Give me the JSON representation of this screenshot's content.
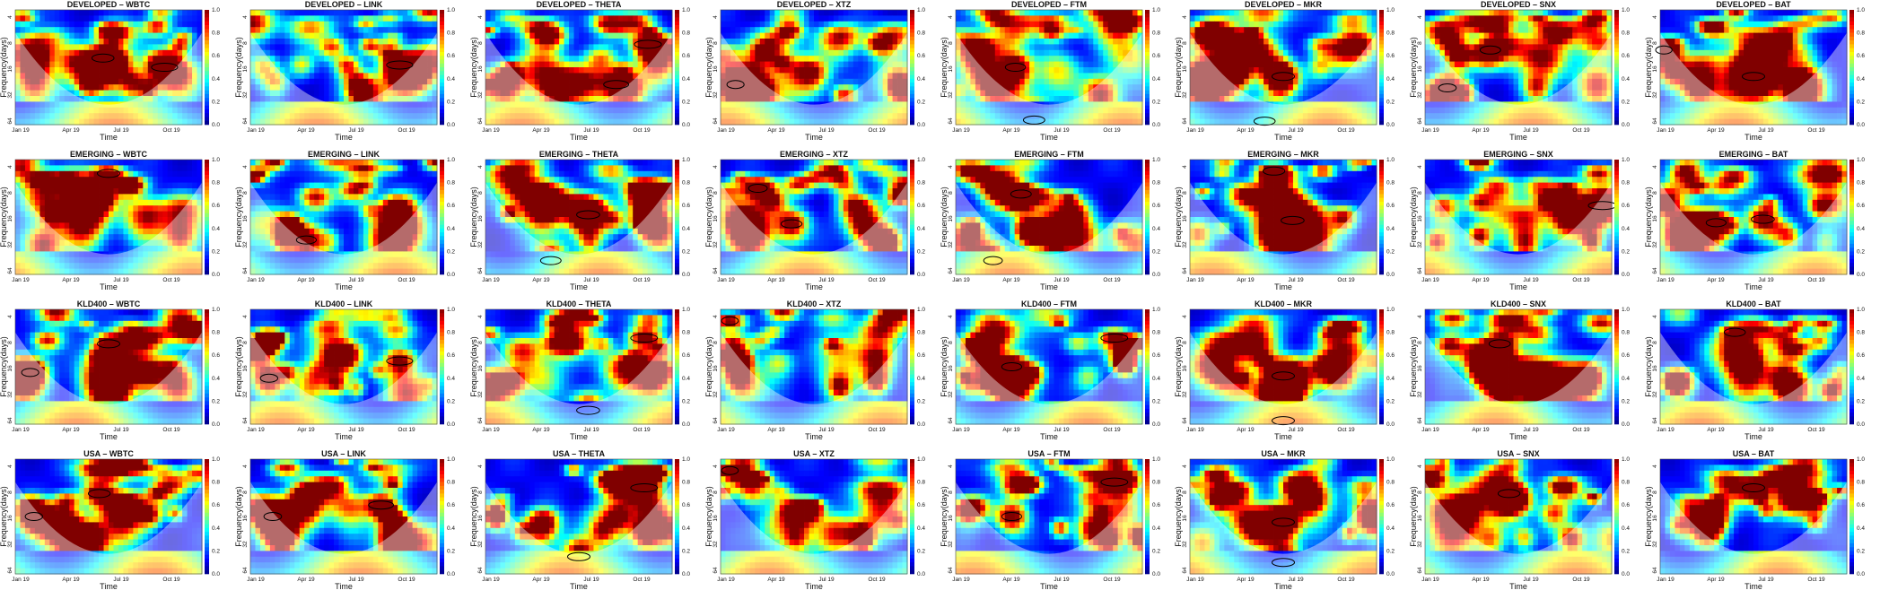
{
  "chart_data": {
    "type": "heatmap",
    "description_rows": [
      "DEVELOPED",
      "EMERGING",
      "KLD400",
      "USA"
    ],
    "columns": [
      "WBTC",
      "LINK",
      "THETA",
      "XTZ",
      "FTM",
      "MKR",
      "SNX",
      "BAT"
    ],
    "xlabel": "Time",
    "ylabel": "Frequency(days)",
    "x_ticks": [
      "Jan 19",
      "Apr 19",
      "Jul 19",
      "Oct 19"
    ],
    "y_ticks": [
      "4",
      "8",
      "16",
      "32",
      "64"
    ],
    "colorbar_ticks": [
      "0.0",
      "0.2",
      "0.4",
      "0.6",
      "0.8",
      "1.0"
    ],
    "value_range": [
      0,
      1
    ],
    "panels": [
      {
        "title": "DEVELOPED – WBTC",
        "seed": 11,
        "hot": [
          [
            0.47,
            0.42
          ],
          [
            0.8,
            0.5
          ]
        ]
      },
      {
        "title": "DEVELOPED – LINK",
        "seed": 12,
        "hot": [
          [
            0.8,
            0.48
          ]
        ]
      },
      {
        "title": "DEVELOPED – THETA",
        "seed": 13,
        "hot": [
          [
            0.87,
            0.3
          ],
          [
            0.7,
            0.65
          ]
        ]
      },
      {
        "title": "DEVELOPED – XTZ",
        "seed": 14,
        "hot": [
          [
            0.08,
            0.65
          ]
        ]
      },
      {
        "title": "DEVELOPED – FTM",
        "seed": 15,
        "hot": [
          [
            0.32,
            0.5
          ],
          [
            0.42,
            0.96
          ]
        ]
      },
      {
        "title": "DEVELOPED – MKR",
        "seed": 16,
        "hot": [
          [
            0.5,
            0.58
          ],
          [
            0.4,
            0.97
          ]
        ]
      },
      {
        "title": "DEVELOPED – SNX",
        "seed": 17,
        "hot": [
          [
            0.35,
            0.35
          ],
          [
            0.12,
            0.68
          ]
        ]
      },
      {
        "title": "DEVELOPED – BAT",
        "seed": 18,
        "hot": [
          [
            0.5,
            0.58
          ],
          [
            0.02,
            0.35
          ]
        ]
      },
      {
        "title": "EMERGING – WBTC",
        "seed": 21,
        "hot": [
          [
            0.5,
            0.12
          ]
        ]
      },
      {
        "title": "EMERGING – LINK",
        "seed": 22,
        "hot": [
          [
            0.3,
            0.7
          ]
        ]
      },
      {
        "title": "EMERGING – THETA",
        "seed": 23,
        "hot": [
          [
            0.55,
            0.48
          ],
          [
            0.35,
            0.88
          ]
        ]
      },
      {
        "title": "EMERGING – XTZ",
        "seed": 24,
        "hot": [
          [
            0.38,
            0.56
          ],
          [
            0.2,
            0.25
          ]
        ]
      },
      {
        "title": "EMERGING – FTM",
        "seed": 25,
        "hot": [
          [
            0.35,
            0.3
          ],
          [
            0.2,
            0.88
          ]
        ]
      },
      {
        "title": "EMERGING – MKR",
        "seed": 26,
        "hot": [
          [
            0.55,
            0.53
          ],
          [
            0.45,
            0.1
          ]
        ]
      },
      {
        "title": "EMERGING – SNX",
        "seed": 27,
        "hot": [
          [
            0.95,
            0.4
          ]
        ]
      },
      {
        "title": "EMERGING – BAT",
        "seed": 28,
        "hot": [
          [
            0.3,
            0.55
          ],
          [
            0.55,
            0.52
          ]
        ]
      },
      {
        "title": "KLD400 – WBTC",
        "seed": 31,
        "hot": [
          [
            0.5,
            0.3
          ],
          [
            0.08,
            0.55
          ]
        ]
      },
      {
        "title": "KLD400 – LINK",
        "seed": 32,
        "hot": [
          [
            0.8,
            0.45
          ],
          [
            0.1,
            0.6
          ]
        ]
      },
      {
        "title": "KLD400 – THETA",
        "seed": 33,
        "hot": [
          [
            0.55,
            0.88
          ],
          [
            0.85,
            0.25
          ]
        ]
      },
      {
        "title": "KLD400 – XTZ",
        "seed": 34,
        "hot": [
          [
            0.05,
            0.1
          ]
        ]
      },
      {
        "title": "KLD400 – FTM",
        "seed": 35,
        "hot": [
          [
            0.85,
            0.25
          ],
          [
            0.3,
            0.5
          ]
        ]
      },
      {
        "title": "KLD400 – MKR",
        "seed": 36,
        "hot": [
          [
            0.5,
            0.58
          ],
          [
            0.5,
            0.97
          ]
        ]
      },
      {
        "title": "KLD400 – SNX",
        "seed": 37,
        "hot": [
          [
            0.4,
            0.3
          ]
        ]
      },
      {
        "title": "KLD400 – BAT",
        "seed": 38,
        "hot": [
          [
            0.4,
            0.2
          ]
        ]
      },
      {
        "title": "USA – WBTC",
        "seed": 41,
        "hot": [
          [
            0.45,
            0.3
          ],
          [
            0.1,
            0.5
          ]
        ]
      },
      {
        "title": "USA – LINK",
        "seed": 42,
        "hot": [
          [
            0.7,
            0.4
          ],
          [
            0.12,
            0.5
          ]
        ]
      },
      {
        "title": "USA – THETA",
        "seed": 43,
        "hot": [
          [
            0.85,
            0.25
          ],
          [
            0.5,
            0.85
          ]
        ]
      },
      {
        "title": "USA – XTZ",
        "seed": 44,
        "hot": [
          [
            0.05,
            0.1
          ]
        ]
      },
      {
        "title": "USA – FTM",
        "seed": 45,
        "hot": [
          [
            0.85,
            0.2
          ],
          [
            0.3,
            0.5
          ]
        ]
      },
      {
        "title": "USA – MKR",
        "seed": 46,
        "hot": [
          [
            0.5,
            0.55
          ],
          [
            0.5,
            0.9
          ]
        ]
      },
      {
        "title": "USA – SNX",
        "seed": 47,
        "hot": [
          [
            0.45,
            0.3
          ]
        ]
      },
      {
        "title": "USA – BAT",
        "seed": 48,
        "hot": [
          [
            0.5,
            0.25
          ]
        ]
      }
    ]
  }
}
